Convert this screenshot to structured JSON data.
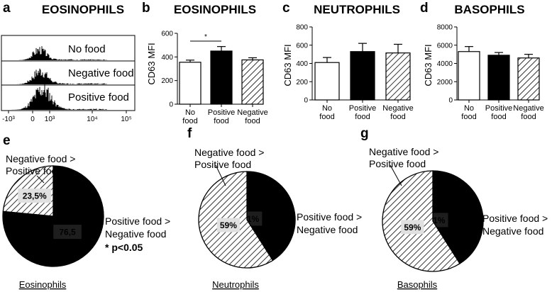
{
  "colors": {
    "black": "#000000",
    "white": "#ffffff",
    "label_box_light": "#e0e0e0",
    "label_box_dark": "#1e1e1e"
  },
  "panel_letters": {
    "a": "a",
    "b": "b",
    "c": "c",
    "d": "d",
    "e": "e",
    "f": "f",
    "g": "g"
  },
  "chart_data": [
    {
      "panel": "a",
      "type": "histogram",
      "title": "EOSINOPHILS",
      "tracks": [
        "No food",
        "Negative food",
        "Positive food"
      ],
      "x_ticks": [
        "-10³",
        "0",
        "10³",
        "10⁴",
        "10⁵"
      ]
    },
    {
      "panel": "b",
      "type": "bar",
      "title": "EOSINOPHILS",
      "ylabel": "CD63 MFI",
      "ylim": [
        0,
        600
      ],
      "yticks": [
        0,
        200,
        400,
        600
      ],
      "categories": [
        [
          "No",
          "food"
        ],
        [
          "Positive",
          "food"
        ],
        [
          "Negative",
          "food"
        ]
      ],
      "values": [
        355,
        450,
        375
      ],
      "errors": [
        18,
        38,
        18
      ],
      "fills": [
        "white",
        "black",
        "hatch"
      ],
      "significance": {
        "label": "*",
        "between": [
          0,
          1
        ]
      }
    },
    {
      "panel": "c",
      "type": "bar",
      "title": "NEUTROPHILS",
      "ylabel": "CD63 MFI",
      "ylim": [
        0,
        800
      ],
      "yticks": [
        0,
        200,
        400,
        600,
        800
      ],
      "categories": [
        [
          "No",
          "food"
        ],
        [
          "Positive",
          "food"
        ],
        [
          "Negative",
          "food"
        ]
      ],
      "values": [
        410,
        530,
        515
      ],
      "errors": [
        55,
        90,
        95
      ],
      "fills": [
        "white",
        "black",
        "hatch"
      ]
    },
    {
      "panel": "d",
      "type": "bar",
      "title": "BASOPHILS",
      "ylabel": "CD63 MFI",
      "ylim": [
        0,
        8000
      ],
      "yticks": [
        0,
        2000,
        4000,
        6000,
        8000
      ],
      "categories": [
        [
          "No",
          "food"
        ],
        [
          "Positive",
          "food"
        ],
        [
          "Negative",
          "food"
        ]
      ],
      "values": [
        5300,
        4900,
        4600
      ],
      "errors": [
        550,
        300,
        400
      ],
      "fills": [
        "white",
        "black",
        "hatch"
      ]
    },
    {
      "panel": "e",
      "type": "pie",
      "title": "Eosinophils",
      "slices": [
        {
          "label": [
            "Positive food >",
            "Negative food"
          ],
          "value": 76.5,
          "text": "76,5",
          "fill": "black"
        },
        {
          "label": [
            "Negative food >",
            "Positive food"
          ],
          "value": 23.5,
          "text": "23,5%",
          "fill": "hatch"
        }
      ],
      "annotation": "* p<0.05"
    },
    {
      "panel": "f",
      "type": "pie",
      "title": "Neutrophils",
      "slices": [
        {
          "label": [
            "Positive food >",
            "Negative food"
          ],
          "value": 41,
          "text": "41%",
          "fill": "black"
        },
        {
          "label": [
            "Negative food >",
            "Positive food"
          ],
          "value": 59,
          "text": "59%",
          "fill": "hatch"
        }
      ]
    },
    {
      "panel": "g",
      "type": "pie",
      "title": "Basophils",
      "slices": [
        {
          "label": [
            "Positive food >",
            "Negative food"
          ],
          "value": 41,
          "text": "41%",
          "fill": "black"
        },
        {
          "label": [
            "Negative food >",
            "Positive food"
          ],
          "value": 59,
          "text": "59%",
          "fill": "hatch"
        }
      ]
    }
  ]
}
